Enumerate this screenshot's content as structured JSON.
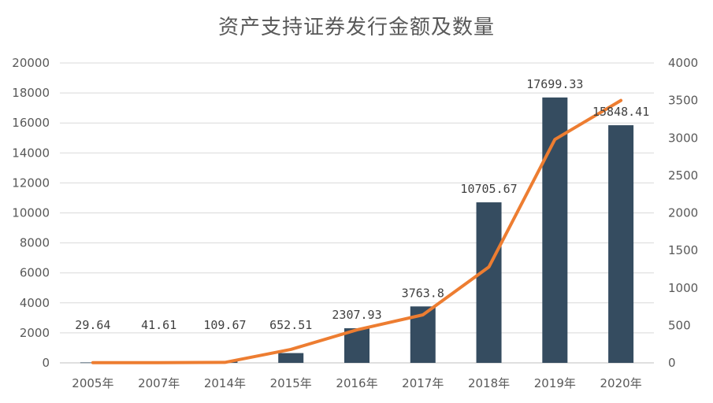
{
  "chart_data": {
    "type": "bar",
    "title": "资产支持证券发行金额及数量",
    "categories": [
      "2005年",
      "2007年",
      "2014年",
      "2015年",
      "2016年",
      "2017年",
      "2018年",
      "2019年",
      "2020年"
    ],
    "series": [
      {
        "type": "bar",
        "axis": "left",
        "color": "#354c60",
        "values": [
          29.64,
          41.61,
          109.67,
          652.51,
          2307.93,
          3763.8,
          10705.67,
          17699.33,
          15848.41
        ],
        "labels": [
          "29.64",
          "41.61",
          "109.67",
          "652.51",
          "2307.93",
          "3763.8",
          "10705.67",
          "17699.33",
          "15848.41"
        ]
      },
      {
        "type": "line",
        "axis": "right",
        "color": "#ed7d31",
        "values": [
          2,
          3,
          6,
          180,
          440,
          640,
          1280,
          2980,
          3500
        ]
      }
    ],
    "ylim_left": [
      0,
      20000
    ],
    "yticks_left": [
      "0",
      "2000",
      "4000",
      "6000",
      "8000",
      "10000",
      "12000",
      "14000",
      "16000",
      "18000",
      "20000"
    ],
    "ylim_right": [
      0,
      4000
    ],
    "yticks_right": [
      "0",
      "500",
      "1000",
      "1500",
      "2000",
      "2500",
      "3000",
      "3500",
      "4000"
    ],
    "grid": true,
    "legend": "none"
  }
}
